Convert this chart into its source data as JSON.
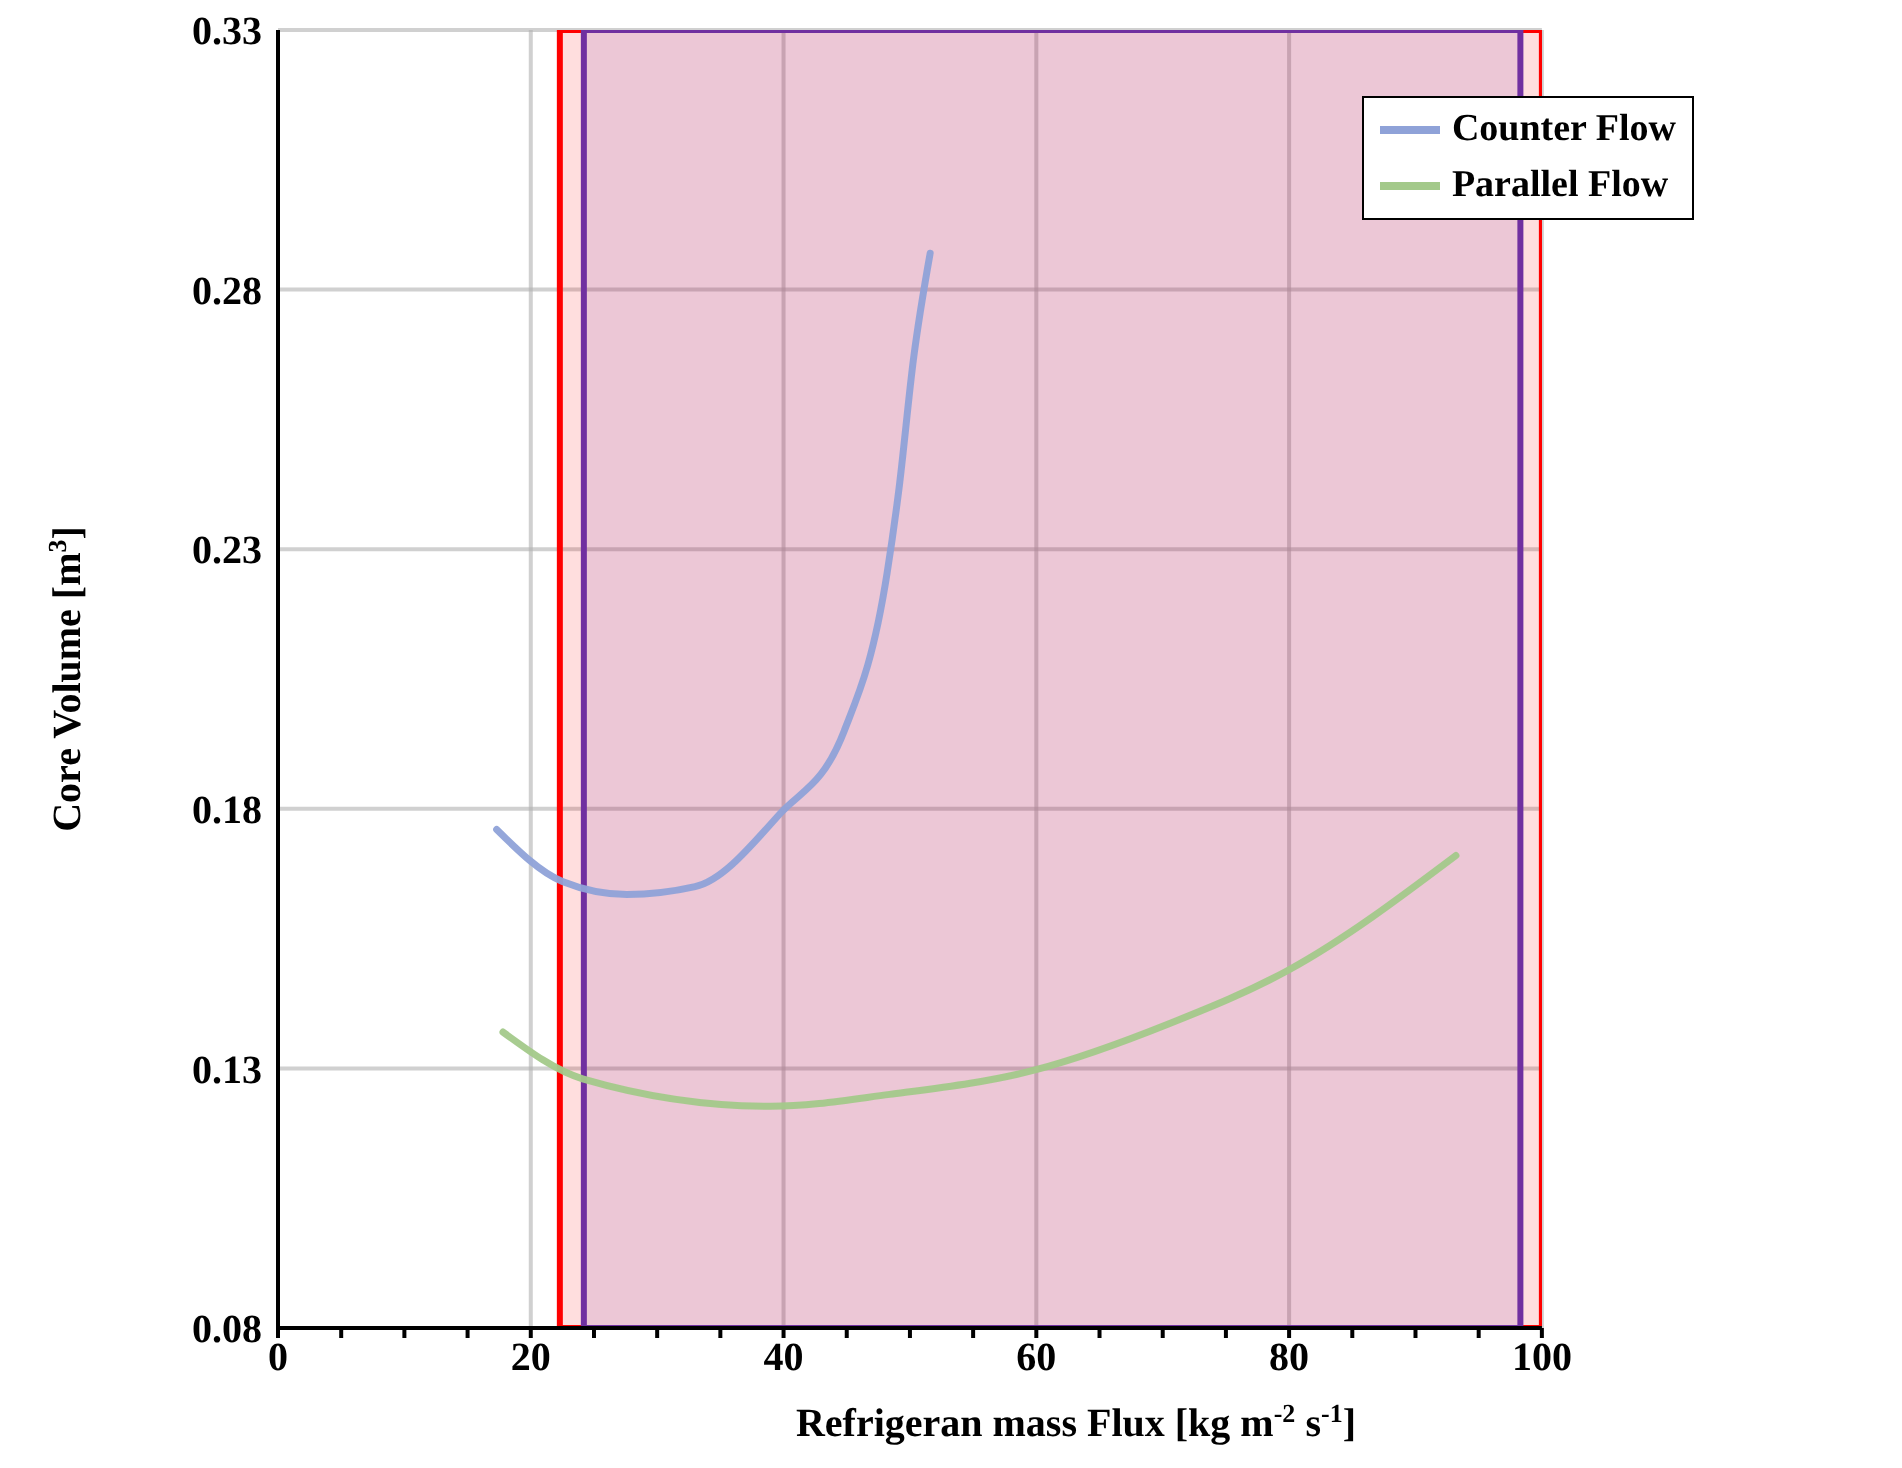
{
  "chart_data": {
    "type": "line",
    "xlabel": "Refrigeran mass Flux [kg m$^{-2}$ s$^{-1}$]",
    "ylabel": "Core Volume [m$^{3}$]",
    "xlim": [
      0,
      100
    ],
    "xticks": [
      0,
      {
        "value": 5,
        "label": null
      },
      {
        "value": 10,
        "label": null
      },
      {
        "value": 15,
        "label": null
      },
      20,
      {
        "value": 25,
        "label": null
      },
      {
        "value": 30,
        "label": null
      },
      {
        "value": 35,
        "label": null
      },
      40,
      {
        "value": 45,
        "label": null
      },
      {
        "value": 50,
        "label": null
      },
      {
        "value": 55,
        "label": null
      },
      60,
      {
        "value": 65,
        "label": null
      },
      {
        "value": 70,
        "label": null
      },
      {
        "value": 75,
        "label": null
      },
      80,
      {
        "value": 85,
        "label": null
      },
      {
        "value": 90,
        "label": null
      },
      {
        "value": 95,
        "label": null
      },
      100
    ],
    "ylim": [
      0.08,
      0.33
    ],
    "yticks": [
      0.08,
      0.13,
      0.18,
      0.23,
      0.28,
      0.33
    ],
    "grid": true,
    "legend": "top right",
    "marker": "none",
    "line_style": "solid",
    "bands": [
      {
        "axis": "x",
        "from": 22.3,
        "to": 100,
        "color": "#ff0000",
        "label": null
      },
      {
        "axis": "x",
        "from": 24.2,
        "to": 98.3,
        "color": "#7030a0",
        "label": null
      }
    ],
    "series": [
      {
        "name": "Counter Flow",
        "color": "#8fa2d8",
        "x": [
          17.3,
          22.5,
          27.6,
          33,
          39.7,
          44.8,
          48.2,
          49.1,
          50.3,
          51.6
        ],
        "values": [
          0.176,
          0.166,
          0.1635,
          0.165,
          0.179,
          0.195,
          0.2255,
          0.241,
          0.267,
          0.287
        ]
      },
      {
        "name": "Parallel Flow",
        "color": "#a3c98a",
        "x": [
          17.8,
          24.1,
          39,
          48.4,
          59.9,
          70.4,
          80,
          93.2
        ],
        "values": [
          0.137,
          0.128,
          0.1227,
          0.125,
          0.1297,
          0.1385,
          0.149,
          0.171
        ]
      }
    ]
  }
}
